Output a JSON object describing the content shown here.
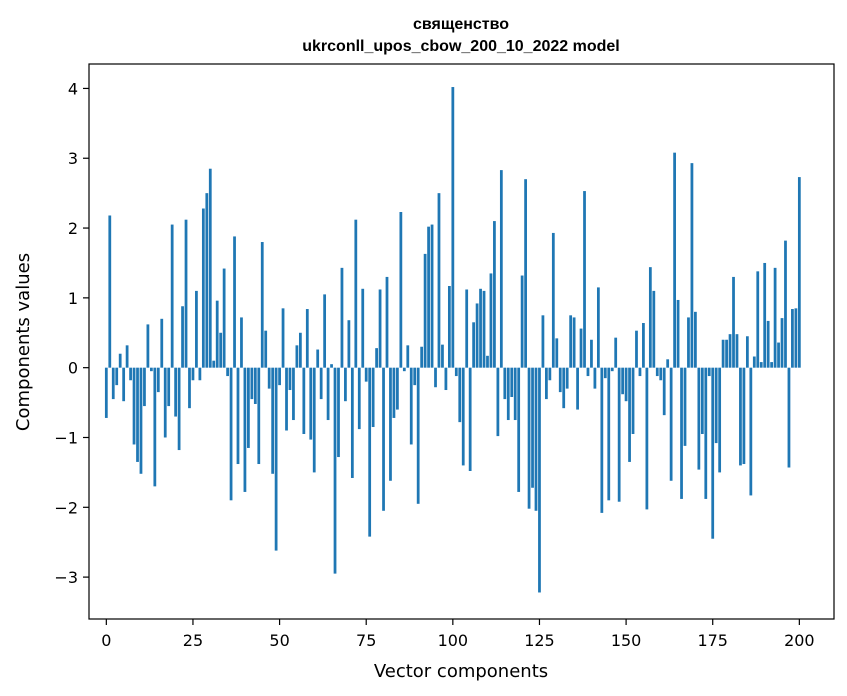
{
  "chart_data": {
    "type": "bar",
    "title": "священство",
    "subtitle": "ukrconll_upos_cbow_200_10_2022 model",
    "xlabel": "Vector components",
    "ylabel": "Components values",
    "xlim": [
      -5,
      210
    ],
    "ylim": [
      -3.6,
      4.35
    ],
    "xticks": [
      0,
      25,
      50,
      75,
      100,
      125,
      150,
      175,
      200
    ],
    "yticks": [
      -3,
      -2,
      -1,
      0,
      1,
      2,
      3,
      4
    ],
    "xtick_labels": [
      "0",
      "25",
      "50",
      "75",
      "100",
      "125",
      "150",
      "175",
      "200"
    ],
    "ytick_labels": [
      "−3",
      "−2",
      "−1",
      "0",
      "1",
      "2",
      "3",
      "4"
    ],
    "color": "#1f77b4",
    "values": [
      -0.72,
      2.18,
      -0.45,
      -0.25,
      0.2,
      -0.48,
      0.32,
      -0.18,
      -1.1,
      -1.35,
      -1.52,
      -0.55,
      0.62,
      -0.05,
      -1.7,
      -0.35,
      0.7,
      -1.0,
      -0.55,
      2.05,
      -0.7,
      -1.18,
      0.88,
      2.12,
      -0.58,
      -0.18,
      1.1,
      -0.18,
      2.28,
      2.5,
      2.85,
      0.1,
      0.96,
      0.5,
      1.42,
      -0.12,
      -1.9,
      1.88,
      -1.38,
      0.72,
      -1.78,
      -1.15,
      -0.45,
      -0.52,
      -1.38,
      1.8,
      0.53,
      -0.3,
      -1.52,
      -2.62,
      -0.25,
      0.85,
      -0.9,
      -0.32,
      -0.75,
      0.32,
      0.5,
      -0.95,
      0.84,
      -1.03,
      -1.5,
      0.26,
      -0.45,
      1.05,
      -0.75,
      0.05,
      -2.95,
      -1.28,
      1.43,
      -0.48,
      0.68,
      -1.58,
      2.12,
      -0.88,
      1.13,
      -0.2,
      -2.42,
      -0.85,
      0.28,
      1.12,
      -2.05,
      1.3,
      -1.62,
      -0.72,
      -0.6,
      2.23,
      -0.05,
      0.32,
      -1.1,
      -0.25,
      -1.95,
      0.3,
      1.63,
      2.02,
      2.05,
      -0.28,
      2.5,
      0.33,
      -0.32,
      1.17,
      4.02,
      -0.12,
      -0.78,
      -1.4,
      1.12,
      -1.48,
      0.65,
      0.92,
      1.13,
      1.1,
      0.17,
      1.35,
      2.1,
      -0.98,
      2.83,
      -0.45,
      -0.75,
      -0.42,
      -0.75,
      -1.78,
      1.32,
      2.7,
      -2.02,
      -1.72,
      -2.05,
      -3.22,
      0.75,
      -0.45,
      -0.18,
      1.93,
      0.42,
      -0.35,
      -0.58,
      -0.3,
      0.75,
      0.72,
      -0.6,
      0.56,
      2.53,
      -0.12,
      0.4,
      -0.3,
      1.15,
      -2.08,
      -0.15,
      -1.9,
      -0.05,
      0.43,
      -1.92,
      -0.38,
      -0.48,
      -1.35,
      -0.95,
      0.53,
      -0.12,
      0.64,
      -2.03,
      1.44,
      1.1,
      -0.12,
      -0.18,
      -0.68,
      0.12,
      -1.62,
      3.08,
      0.97,
      -1.88,
      -1.12,
      0.72,
      2.93,
      0.8,
      -1.46,
      -0.95,
      -1.88,
      -0.12,
      -2.45,
      -1.08,
      -1.5,
      0.4,
      0.4,
      0.48,
      1.3,
      0.48,
      -1.4,
      -1.38,
      0.45,
      -1.83,
      0.16,
      1.38,
      0.08,
      1.5,
      0.67,
      0.08,
      1.43,
      0.36,
      0.71,
      1.82,
      -1.43,
      0.84,
      0.85,
      2.73
    ]
  }
}
